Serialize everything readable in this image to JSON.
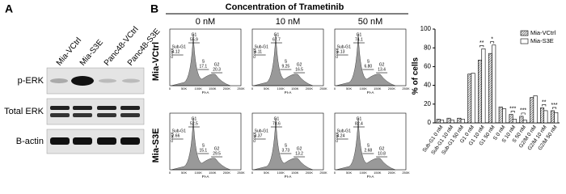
{
  "panel_a": {
    "letter": "A",
    "lanes": [
      "Mia-VCtrl",
      "Mia-S3E",
      "Panc48-VCtrl",
      "Panc48-S3E"
    ],
    "rows": [
      "p-ERK",
      "Total ERK",
      "B-actin"
    ]
  },
  "panel_b": {
    "letter": "B",
    "title": "Concentration of Trametinib",
    "columns": [
      "0 nM",
      "10 nM",
      "50 nM"
    ],
    "axis": {
      "x_label": "PI-A",
      "y_label": "Count",
      "x_ticks": [
        "0",
        "50K",
        "100K",
        "150K",
        "200K",
        "250K"
      ]
    },
    "rows": [
      {
        "label": "Mia-VCtrl",
        "plots": [
          {
            "gates": [
              {
                "name": "Sub-G1",
                "value": "4.12"
              },
              {
                "name": "G1",
                "value": "55.9"
              },
              {
                "name": "S",
                "value": "17.1"
              },
              {
                "name": "G2",
                "value": "20.3"
              }
            ]
          },
          {
            "gates": [
              {
                "name": "Sub-G1",
                "value": "6.11"
              },
              {
                "name": "G1",
                "value": "67.7"
              },
              {
                "name": "S",
                "value": "9.25"
              },
              {
                "name": "G2",
                "value": "16.5"
              }
            ]
          },
          {
            "gates": [
              {
                "name": "Sub-G1",
                "value": "5.13"
              },
              {
                "name": "G1",
                "value": "74.1"
              },
              {
                "name": "S",
                "value": "6.80"
              },
              {
                "name": "G2",
                "value": "13.4"
              }
            ]
          }
        ]
      },
      {
        "label": "Mia-S3E",
        "plots": [
          {
            "gates": [
              {
                "name": "Sub-G1",
                "value": "2.66"
              },
              {
                "name": "G1",
                "value": "52.5"
              },
              {
                "name": "S",
                "value": "15.1"
              },
              {
                "name": "G2",
                "value": "29.5"
              }
            ]
          },
          {
            "gates": [
              {
                "name": "Sub-G1",
                "value": "3.37"
              },
              {
                "name": "G1",
                "value": "78.6"
              },
              {
                "name": "S",
                "value": "3.73"
              },
              {
                "name": "G2",
                "value": "13.2"
              }
            ]
          },
          {
            "gates": [
              {
                "name": "Sub-G1",
                "value": "4.24"
              },
              {
                "name": "G1",
                "value": "82.4"
              },
              {
                "name": "S",
                "value": "2.68"
              },
              {
                "name": "G2",
                "value": "10.8"
              }
            ]
          }
        ]
      }
    ]
  },
  "chart_data": {
    "type": "bar",
    "y_label": "% of cells",
    "categories": [
      "Sub-G1 0 nM",
      "Sub-G1 10 nM",
      "Sub-G1 50 nM",
      "G1 0 nM",
      "G1 10 nM",
      "G1 50 nM",
      "S 0 nM",
      "S 10 nM",
      "S 50 nM",
      "G2/M 0 nM",
      "G2/M 10 nM",
      "G2/M 50 nM"
    ],
    "series": [
      {
        "name": "Mia-VCtrl",
        "color": "#333333",
        "hatch": true,
        "values": [
          4,
          5,
          5,
          52,
          67,
          74,
          17,
          9,
          7,
          27,
          16,
          13
        ]
      },
      {
        "name": "Mia-S3E",
        "color": "#ffffff",
        "hatch": false,
        "values": [
          3,
          3,
          4,
          53,
          79,
          83,
          15,
          4,
          3,
          29,
          13,
          11
        ]
      }
    ],
    "ylim": [
      0,
      100
    ],
    "yticks": [
      0,
      20,
      40,
      60,
      80,
      100
    ],
    "legend": "upper right",
    "annotations": [
      {
        "text": "**",
        "category": "G1 10 nM"
      },
      {
        "text": "*",
        "category": "G1 50 nM"
      },
      {
        "text": "***",
        "category": "S 10 nM"
      },
      {
        "text": "***",
        "category": "S 50 nM"
      },
      {
        "text": "**",
        "category": "G2/M 10 nM"
      },
      {
        "text": "***",
        "category": "G2/M 50 nM"
      }
    ]
  }
}
